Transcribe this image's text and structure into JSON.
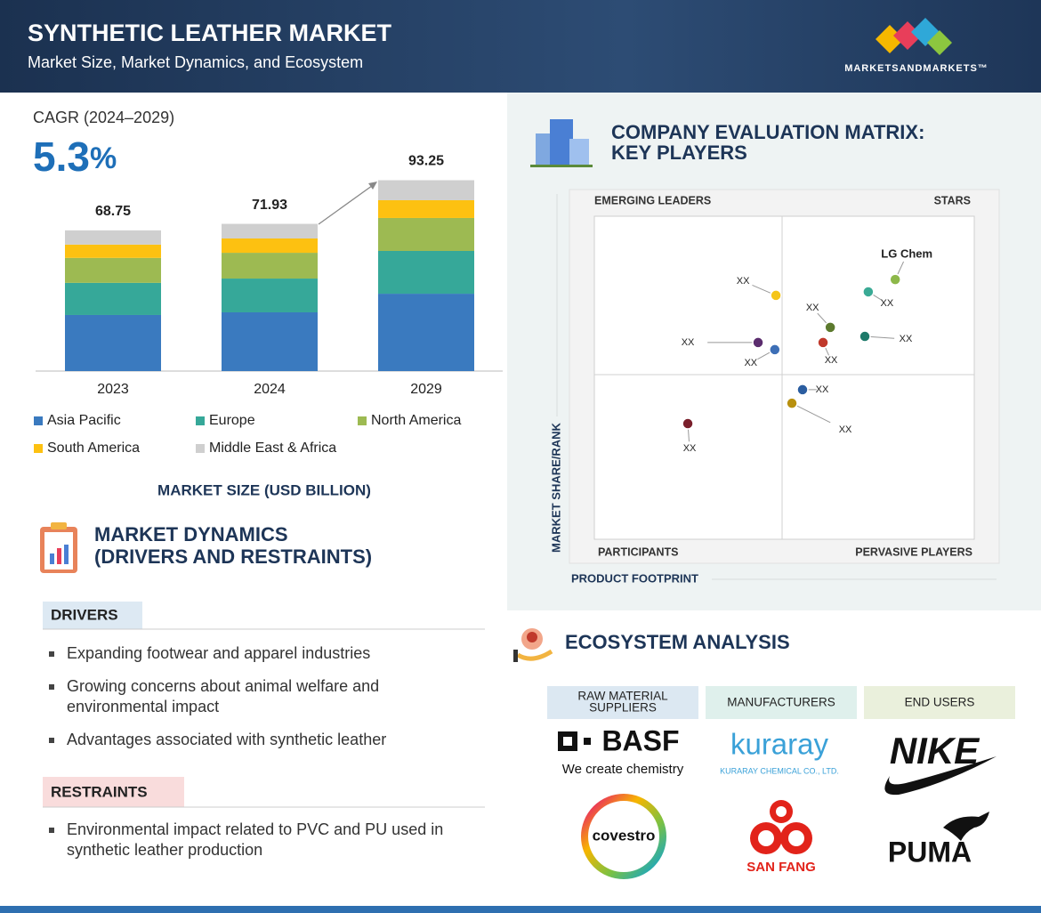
{
  "header": {
    "title": "SYNTHETIC LEATHER MARKET",
    "subtitle": "Market Size, Market Dynamics, and Ecosystem",
    "brand": "MARKETSANDMARKETS™"
  },
  "cagr": {
    "label": "CAGR (2024–2029)",
    "value": "5.3",
    "unit": "%"
  },
  "chart_data": [
    {
      "type": "bar",
      "stacked": true,
      "xlabel": "MARKET SIZE (USD BILLION)",
      "categories": [
        "2023",
        "2024",
        "2029"
      ],
      "series": [
        {
          "name": "Asia Pacific",
          "color": "#3a7abf",
          "values": [
            27.4,
            28.7,
            37.8
          ]
        },
        {
          "name": "Europe",
          "color": "#36a899",
          "values": [
            15.7,
            16.5,
            20.9
          ]
        },
        {
          "name": "North America",
          "color": "#9dba52",
          "values": [
            12.2,
            12.6,
            16.1
          ]
        },
        {
          "name": "South America",
          "color": "#fdc111",
          "values": [
            6.5,
            7.0,
            8.7
          ]
        },
        {
          "name": "Middle East & Africa",
          "color": "#cfcfcf",
          "values": [
            6.95,
            7.13,
            9.75
          ]
        }
      ],
      "totals": [
        68.75,
        71.93,
        93.25
      ],
      "ylim": [
        0,
        100
      ]
    },
    {
      "type": "scatter",
      "title_lines": [
        "COMPANY EVALUATION MATRIX:",
        "KEY PLAYERS"
      ],
      "xlabel": "PRODUCT FOOTPRINT",
      "ylabel": "MARKET SHARE/RANK",
      "quadrants": {
        "top_left": "EMERGING LEADERS",
        "top_right": "STARS",
        "bottom_left": "PARTICIPANTS",
        "bottom_right": "PERVASIVE PLAYERS"
      },
      "xlim": [
        0,
        100
      ],
      "ylim": [
        0,
        100
      ],
      "points": [
        {
          "label": "XX",
          "x": 47.8,
          "y": 75.5,
          "color": "#f5c518"
        },
        {
          "label": "LG Chem",
          "x": 79.2,
          "y": 80.4,
          "color": "#8db84a"
        },
        {
          "label": "XX",
          "x": 72.1,
          "y": 76.6,
          "color": "#3aaa95"
        },
        {
          "label": "XX",
          "x": 62.1,
          "y": 65.6,
          "color": "#5c7a2e"
        },
        {
          "label": "XX",
          "x": 43.1,
          "y": 60.9,
          "color": "#5b2d6e"
        },
        {
          "label": "XX",
          "x": 47.5,
          "y": 58.7,
          "color": "#3d6fb6"
        },
        {
          "label": "XX",
          "x": 60.2,
          "y": 60.9,
          "color": "#c0392b"
        },
        {
          "label": "XX",
          "x": 71.2,
          "y": 62.8,
          "color": "#1e7a6a"
        },
        {
          "label": "XX",
          "x": 54.8,
          "y": 46.3,
          "color": "#2b5da0"
        },
        {
          "label": "XX",
          "x": 52.0,
          "y": 42.1,
          "color": "#b8900f"
        },
        {
          "label": "XX",
          "x": 24.6,
          "y": 35.8,
          "color": "#7a1f2b"
        }
      ]
    }
  ],
  "dynamics": {
    "title_lines": [
      "MARKET DYNAMICS",
      "(DRIVERS AND RESTRAINTS)"
    ],
    "drivers": {
      "heading": "DRIVERS",
      "items": [
        "Expanding footwear and apparel industries",
        "Growing concerns about animal welfare and environmental impact",
        "Advantages associated with synthetic leather"
      ]
    },
    "restraints": {
      "heading": "RESTRAINTS",
      "items": [
        "Environmental impact related to PVC and PU used in synthetic leather production"
      ]
    }
  },
  "ecosystem": {
    "title": "ECOSYSTEM ANALYSIS",
    "columns": [
      {
        "heading_lines": [
          "RAW MATERIAL",
          "SUPPLIERS"
        ]
      },
      {
        "heading_lines": [
          "MANUFACTURERS"
        ]
      },
      {
        "heading_lines": [
          "END USERS"
        ]
      }
    ],
    "logos": {
      "basf": "BASF",
      "basf_tagline": "We create chemistry",
      "kuraray": "kuraray",
      "kuraray_sub": "KURARAY CHEMICAL CO., LTD.",
      "nike": "NIKE",
      "covestro": "covestro",
      "san_fang": "SAN FANG",
      "puma": "PUMA"
    }
  }
}
